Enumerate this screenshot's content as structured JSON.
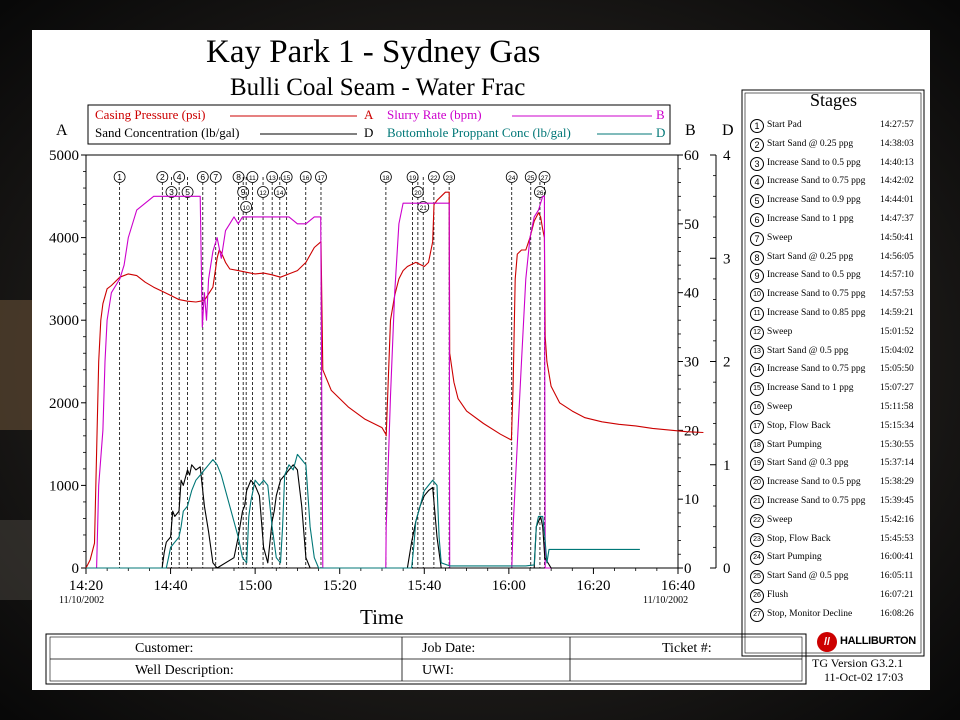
{
  "title": "Kay Park 1 - Sydney Gas",
  "subtitle": "Bulli Coal Seam - Water Frac",
  "legend": [
    {
      "label": "Casing Pressure (psi)",
      "axis": "A",
      "color": "#cc0000"
    },
    {
      "label": "Slurry Rate (bpm)",
      "axis": "B",
      "color": "#cc00cc"
    },
    {
      "label": "Sand Concentration (lb/gal)",
      "axis": "D",
      "color": "#000000"
    },
    {
      "label": "Bottomhole Proppant Conc (lb/gal)",
      "axis": "D",
      "color": "#007777"
    }
  ],
  "axis_letters": {
    "left": "A",
    "right1": "B",
    "right2": "D"
  },
  "xlabel": "Time",
  "date_left": "11/10/2002",
  "date_right": "11/10/2002",
  "stages_title": "Stages",
  "stages": [
    {
      "n": "1",
      "name": "Start Pad",
      "time": "14:27:57"
    },
    {
      "n": "2",
      "name": "Start Sand @ 0.25 ppg",
      "time": "14:38:03"
    },
    {
      "n": "3",
      "name": "Increase Sand to 0.5 ppg",
      "time": "14:40:13"
    },
    {
      "n": "4",
      "name": "Increase Sand to 0.75 ppg",
      "time": "14:42:02"
    },
    {
      "n": "5",
      "name": "Increase Sand to 0.9 ppg",
      "time": "14:44:01"
    },
    {
      "n": "6",
      "name": "Increase Sand to 1 ppg",
      "time": "14:47:37"
    },
    {
      "n": "7",
      "name": "Sweep",
      "time": "14:50:41"
    },
    {
      "n": "8",
      "name": "Start Sand @ 0.25 ppg",
      "time": "14:56:05"
    },
    {
      "n": "9",
      "name": "Increase Sand to 0.5 ppg",
      "time": "14:57:10"
    },
    {
      "n": "10",
      "name": "Increase Sand to 0.75 ppg",
      "time": "14:57:53"
    },
    {
      "n": "11",
      "name": "Increase Sand to 0.85 ppg",
      "time": "14:59:21"
    },
    {
      "n": "12",
      "name": "Sweep",
      "time": "15:01:52"
    },
    {
      "n": "13",
      "name": "Start Sand @ 0.5 ppg",
      "time": "15:04:02"
    },
    {
      "n": "14",
      "name": "Increase Sand to 0.75 ppg",
      "time": "15:05:50"
    },
    {
      "n": "15",
      "name": "Increase Sand to 1 ppg",
      "time": "15:07:27"
    },
    {
      "n": "16",
      "name": "Sweep",
      "time": "15:11:58"
    },
    {
      "n": "17",
      "name": "Stop, Flow Back",
      "time": "15:15:34"
    },
    {
      "n": "18",
      "name": "Start Pumping",
      "time": "15:30:55"
    },
    {
      "n": "19",
      "name": "Start Sand @ 0.3 ppg",
      "time": "15:37:14"
    },
    {
      "n": "20",
      "name": "Increase Sand to 0.5 ppg",
      "time": "15:38:29"
    },
    {
      "n": "21",
      "name": "Increase Sand to 0.75 ppg",
      "time": "15:39:45"
    },
    {
      "n": "22",
      "name": "Sweep",
      "time": "15:42:16"
    },
    {
      "n": "23",
      "name": "Stop, Flow Back",
      "time": "15:45:53"
    },
    {
      "n": "24",
      "name": "Start Pumping",
      "time": "16:00:41"
    },
    {
      "n": "25",
      "name": "Start Sand @ 0.5 ppg",
      "time": "16:05:11"
    },
    {
      "n": "26",
      "name": "Flush",
      "time": "16:07:21"
    },
    {
      "n": "27",
      "name": "Stop, Monitor Decline",
      "time": "16:08:26"
    }
  ],
  "footer": {
    "customer": "Customer:",
    "job_date": "Job Date:",
    "ticket": "Ticket #:",
    "well_description": "Well Description:",
    "uwi": "UWI:",
    "brand": "HALLIBURTON",
    "version": "TG Version G3.2.1",
    "version_date": "11-Oct-02 17:03"
  },
  "chart_data": {
    "type": "line",
    "x_ticks": [
      "14:20",
      "14:40",
      "15:00",
      "15:20",
      "15:40",
      "16:00",
      "16:20",
      "16:40"
    ],
    "x_range": [
      "14:20",
      "16:40"
    ],
    "axes": {
      "A": {
        "min": 0,
        "max": 5000,
        "ticks": [
          0,
          1000,
          2000,
          3000,
          4000,
          5000
        ]
      },
      "B": {
        "min": 0,
        "max": 60,
        "ticks": [
          0,
          10,
          20,
          30,
          40,
          50,
          60
        ]
      },
      "D": {
        "min": 0,
        "max": 4,
        "ticks": [
          0,
          1,
          2,
          3,
          4
        ]
      }
    },
    "stage_marker_minutes": [
      7.95,
      18.05,
      20.22,
      22.03,
      24.02,
      27.62,
      30.68,
      36.08,
      37.17,
      37.88,
      39.35,
      41.87,
      44.03,
      45.83,
      47.45,
      51.97,
      55.57,
      70.92,
      77.23,
      78.48,
      79.75,
      82.27,
      85.88,
      100.68,
      105.18,
      107.35,
      108.43
    ],
    "series": [
      {
        "name": "Casing Pressure (psi)",
        "axis": "A",
        "x": [
          0,
          1,
          2,
          3,
          3.5,
          4,
          5,
          6,
          8,
          10,
          12,
          14,
          16,
          18,
          20,
          22,
          24,
          26,
          28,
          30,
          31,
          31.5,
          32,
          33,
          34,
          36,
          38,
          40,
          42,
          44,
          46,
          48,
          50,
          52,
          54,
          55.57,
          56,
          58,
          62,
          66,
          70,
          70.9,
          71,
          72,
          73,
          74,
          75,
          76,
          78,
          80,
          81,
          82,
          82.3,
          83,
          84,
          85,
          85.9,
          86,
          87,
          88,
          90,
          94,
          98,
          100.6,
          101,
          101.5,
          102,
          103,
          104,
          105,
          106,
          107,
          107.5,
          108,
          108.4,
          108.6,
          109,
          110,
          112,
          115,
          118,
          122,
          126,
          130,
          134,
          138,
          142,
          146
        ],
        "y": [
          0,
          100,
          300,
          2500,
          3000,
          3200,
          3380,
          3420,
          3520,
          3560,
          3540,
          3460,
          3400,
          3350,
          3300,
          3250,
          3230,
          3220,
          3240,
          3400,
          3750,
          3850,
          3820,
          3700,
          3620,
          3600,
          3580,
          3560,
          3570,
          3550,
          3520,
          3560,
          3600,
          3700,
          3880,
          3950,
          2400,
          2150,
          1950,
          1800,
          1700,
          1620,
          1600,
          3000,
          3300,
          3500,
          3600,
          3650,
          3700,
          3650,
          3700,
          3950,
          4400,
          4450,
          4500,
          4550,
          4550,
          2600,
          2250,
          2050,
          1900,
          1750,
          1620,
          1550,
          2200,
          3500,
          3800,
          3850,
          3850,
          4000,
          4200,
          4300,
          4250,
          4100,
          4000,
          2800,
          2500,
          2200,
          2000,
          1900,
          1820,
          1770,
          1740,
          1720,
          1690,
          1670,
          1650,
          1640
        ]
      },
      {
        "name": "Slurry Rate (bpm)",
        "axis": "B",
        "x": [
          0,
          1,
          2,
          2.5,
          3,
          4,
          4.5,
          5,
          6,
          8,
          9,
          10,
          12,
          14,
          16,
          18,
          20,
          22,
          24,
          26,
          27,
          27.5,
          28,
          28.5,
          29,
          30,
          31,
          32,
          33,
          34,
          35,
          36,
          37,
          38,
          40,
          42,
          44,
          46,
          48,
          50,
          52,
          54,
          55.5,
          56,
          58,
          70,
          70.9,
          71,
          72,
          73,
          74,
          75,
          76,
          77,
          78,
          80,
          85.9,
          86,
          88,
          100,
          100.7,
          101,
          102,
          103,
          104,
          105,
          106,
          107,
          108,
          108.4,
          108.6,
          110
        ],
        "y": [
          0,
          0,
          0,
          0,
          12,
          20,
          30,
          36,
          40,
          42,
          44,
          48,
          52,
          53,
          54,
          54,
          54,
          54,
          54,
          54,
          54,
          35,
          40,
          36,
          42,
          46,
          48,
          45,
          49,
          50,
          51,
          50,
          51,
          51,
          51,
          51,
          51,
          51,
          51,
          50,
          50,
          51,
          51,
          0,
          0,
          0,
          0,
          6,
          25,
          40,
          50,
          53,
          53,
          53,
          53,
          53,
          53,
          0,
          0,
          0,
          0,
          6,
          18,
          30,
          42,
          48,
          51,
          52,
          54,
          54,
          0,
          0
        ]
      },
      {
        "name": "Sand Concentration (lb/gal)",
        "axis": "D",
        "x": [
          0,
          18,
          18.5,
          19,
          20,
          20.5,
          21,
          22,
          22.5,
          23,
          24,
          24.5,
          25,
          26,
          27,
          28,
          29,
          30,
          31,
          35,
          36,
          37,
          37.5,
          38,
          39,
          40,
          41,
          42,
          43,
          44,
          44.5,
          45,
          46,
          47,
          48,
          49,
          50,
          51,
          52,
          53,
          60,
          76,
          77,
          78,
          79,
          80,
          81,
          82,
          83,
          84,
          106,
          106.5,
          107,
          107.5,
          108,
          108.5,
          110
        ],
        "y": [
          0,
          0,
          0.15,
          0.25,
          0.3,
          0.55,
          0.5,
          0.55,
          0.85,
          0.8,
          0.95,
          0.9,
          1.0,
          0.95,
          0.98,
          0.6,
          0.35,
          0.05,
          0,
          0.1,
          0.3,
          0.55,
          0.6,
          0.75,
          0.85,
          0.8,
          0.7,
          0.2,
          0.05,
          0.45,
          0.55,
          0.7,
          0.85,
          0.9,
          0.95,
          1.0,
          0.95,
          0.6,
          0.1,
          0,
          0,
          0,
          0.25,
          0.45,
          0.6,
          0.7,
          0.75,
          0.78,
          0.3,
          0,
          0,
          0.4,
          0.45,
          0.5,
          0.4,
          0.1,
          0
        ]
      },
      {
        "name": "Bottomhole Proppant Conc (lb/gal)",
        "axis": "D",
        "x": [
          0,
          19,
          19.5,
          20,
          21,
          22,
          22.5,
          23,
          24,
          25,
          26,
          27,
          28,
          29,
          30,
          31,
          32,
          36,
          37,
          38,
          38.5,
          39,
          40,
          41,
          42,
          43,
          44,
          45,
          46,
          46.5,
          47,
          48,
          49,
          50,
          51,
          52,
          53,
          54,
          55,
          56,
          60,
          77,
          77.5,
          78,
          79,
          80,
          81,
          82,
          83,
          83.5,
          84,
          86,
          100,
          104,
          106,
          106.5,
          107,
          108,
          108.5,
          109,
          109.5,
          110,
          122,
          131
        ],
        "y": [
          0,
          0,
          0.1,
          0.2,
          0.25,
          0.3,
          0.4,
          0.55,
          0.6,
          0.75,
          0.85,
          0.9,
          0.95,
          1.0,
          1.05,
          1.0,
          0.9,
          0.3,
          0.1,
          0.05,
          0.5,
          0.65,
          0.85,
          0.8,
          0.85,
          0.8,
          0.4,
          0.1,
          0.05,
          0.4,
          0.9,
          1.0,
          0.95,
          1.1,
          1.05,
          1.0,
          0.4,
          0.1,
          0,
          0,
          0,
          0,
          0.2,
          0.45,
          0.6,
          0.75,
          0.8,
          0.85,
          0.8,
          0.3,
          0.05,
          0.02,
          0.02,
          0.02,
          0.03,
          0.4,
          0.5,
          0.5,
          0.3,
          0.05,
          0.18,
          0.18,
          0.18,
          0.18
        ]
      }
    ]
  }
}
